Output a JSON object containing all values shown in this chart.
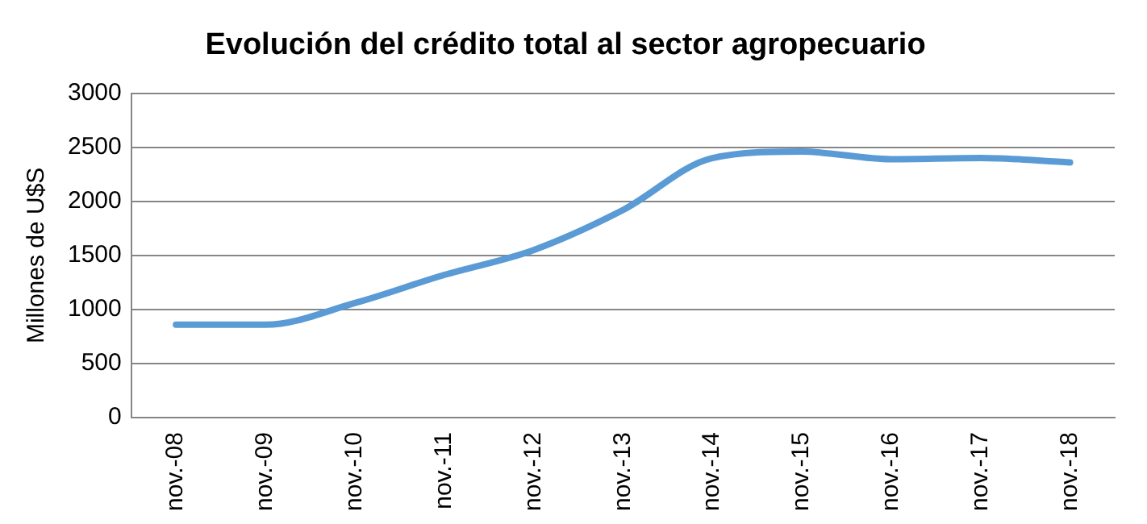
{
  "chart_data": {
    "type": "line",
    "title": "Evolución del crédito total al sector agropecuario",
    "ylabel": "Millones de U$S",
    "categories": [
      "nov.-08",
      "nov.-09",
      "nov.-10",
      "nov.-11",
      "nov.-12",
      "nov.-13",
      "nov.-14",
      "nov.-15",
      "nov.-16",
      "nov.-17",
      "nov.-18"
    ],
    "series": [
      {
        "color": "#5b9bd5",
        "values": [
          860,
          860,
          1060,
          1320,
          1550,
          1920,
          2400,
          2460,
          2390,
          2400,
          2360
        ]
      }
    ],
    "ylim": [
      0,
      3000
    ],
    "yticks": [
      0,
      500,
      1000,
      1500,
      2000,
      2500,
      3000
    ],
    "grid": "y",
    "legend": false,
    "marker": "none",
    "line_style": "solid"
  }
}
